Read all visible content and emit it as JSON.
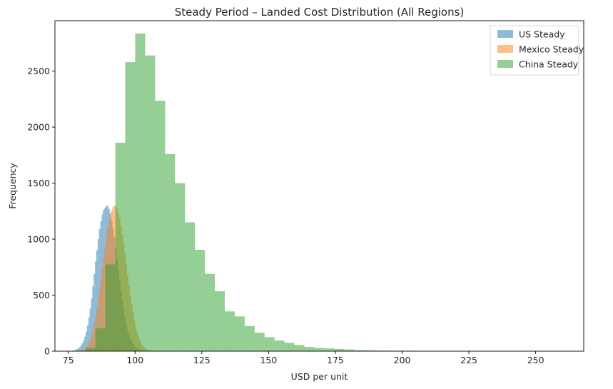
{
  "chart_data": {
    "type": "bar",
    "subtype": "overlapping-histogram",
    "title": "Steady Period – Landed Cost Distribution (All Regions)",
    "xlabel": "USD per unit",
    "ylabel": "Frequency",
    "xlim": [
      70,
      268
    ],
    "ylim": [
      0,
      2950
    ],
    "xticks": [
      75,
      100,
      125,
      150,
      175,
      200,
      225,
      250
    ],
    "yticks": [
      0,
      500,
      1000,
      1500,
      2000,
      2500
    ],
    "legend": "top-right",
    "grid": false,
    "series": [
      {
        "name": "US Steady",
        "color": "#1f77b4",
        "opacity": 0.5,
        "bin_start": 76.5,
        "bin_width": 0.5,
        "values": [
          5,
          8,
          12,
          18,
          25,
          35,
          50,
          70,
          95,
          130,
          175,
          230,
          300,
          380,
          470,
          580,
          690,
          800,
          900,
          1000,
          1090,
          1160,
          1220,
          1260,
          1280,
          1295,
          1300,
          1270,
          1230,
          1170,
          1100,
          1020,
          930,
          830,
          730,
          630,
          540,
          450,
          370,
          300,
          240,
          190,
          150,
          115,
          88,
          66,
          50,
          37,
          27,
          19,
          13,
          9,
          6,
          4,
          2
        ]
      },
      {
        "name": "Mexico Steady",
        "color": "#ff7f0e",
        "opacity": 0.5,
        "bin_start": 78.5,
        "bin_width": 0.5,
        "values": [
          3,
          5,
          8,
          12,
          18,
          26,
          38,
          55,
          78,
          108,
          145,
          190,
          245,
          310,
          385,
          470,
          560,
          655,
          750,
          845,
          935,
          1020,
          1095,
          1160,
          1215,
          1255,
          1285,
          1300,
          1295,
          1270,
          1235,
          1185,
          1120,
          1045,
          960,
          870,
          775,
          680,
          590,
          500,
          420,
          345,
          280,
          222,
          174,
          134,
          101,
          75,
          55,
          40,
          28,
          19,
          13,
          8,
          5,
          3,
          2
        ]
      },
      {
        "name": "China Steady",
        "color": "#2ca02c",
        "opacity": 0.5,
        "bin_start": 77.7,
        "bin_width": 3.725,
        "values": [
          4,
          30,
          205,
          775,
          1860,
          2580,
          2835,
          2640,
          2235,
          1760,
          1500,
          1150,
          905,
          690,
          535,
          355,
          310,
          225,
          165,
          125,
          95,
          75,
          55,
          38,
          30,
          25,
          20,
          15,
          10,
          8,
          6,
          5,
          4,
          4,
          3,
          2,
          2,
          1,
          1,
          2,
          1,
          1,
          1,
          1,
          1,
          1,
          0,
          1,
          1,
          2
        ]
      }
    ]
  }
}
